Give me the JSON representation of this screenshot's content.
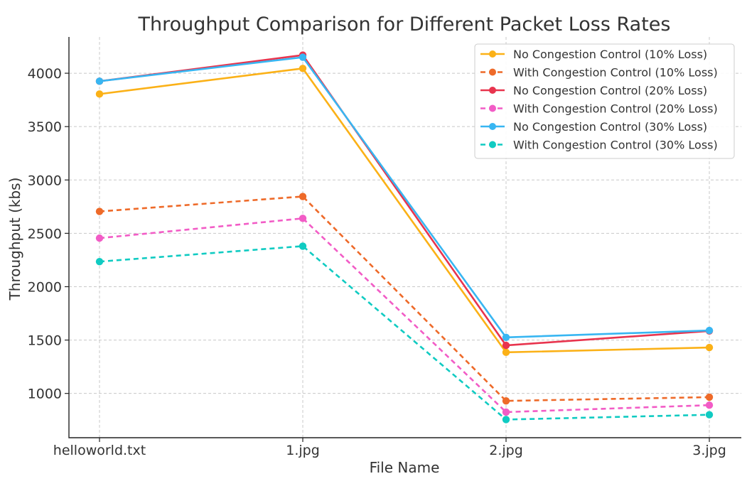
{
  "chart_data": {
    "type": "line",
    "title": "Throughput Comparison for Different Packet Loss Rates",
    "xlabel": "File Name",
    "ylabel": "Throughput (kbs)",
    "categories": [
      "helloworld.txt",
      "1.jpg",
      "2.jpg",
      "3.jpg"
    ],
    "ylim": [
      585,
      4340
    ],
    "yticks": [
      1000,
      1500,
      2000,
      2500,
      3000,
      3500,
      4000
    ],
    "grid": true,
    "legend_position": "top-right",
    "series": [
      {
        "name": "No Congestion Control (10% Loss)",
        "color": "#FBB117",
        "style": "solid",
        "values": [
          3805,
          4045,
          1385,
          1430
        ]
      },
      {
        "name": "With Congestion Control (10% Loss)",
        "color": "#EE6A29",
        "style": "dashed",
        "values": [
          2705,
          2845,
          930,
          965
        ]
      },
      {
        "name": "No Congestion Control (20% Loss)",
        "color": "#E8344E",
        "style": "solid",
        "values": [
          3925,
          4170,
          1450,
          1585
        ]
      },
      {
        "name": "With Congestion Control (20% Loss)",
        "color": "#F25CC6",
        "style": "dashed",
        "values": [
          2455,
          2640,
          825,
          890
        ]
      },
      {
        "name": "No Congestion Control (30% Loss)",
        "color": "#38B6F2",
        "style": "solid",
        "values": [
          3925,
          4150,
          1525,
          1590
        ]
      },
      {
        "name": "With Congestion Control (30% Loss)",
        "color": "#10CBC2",
        "style": "dashed",
        "values": [
          2235,
          2380,
          755,
          800
        ]
      }
    ]
  }
}
